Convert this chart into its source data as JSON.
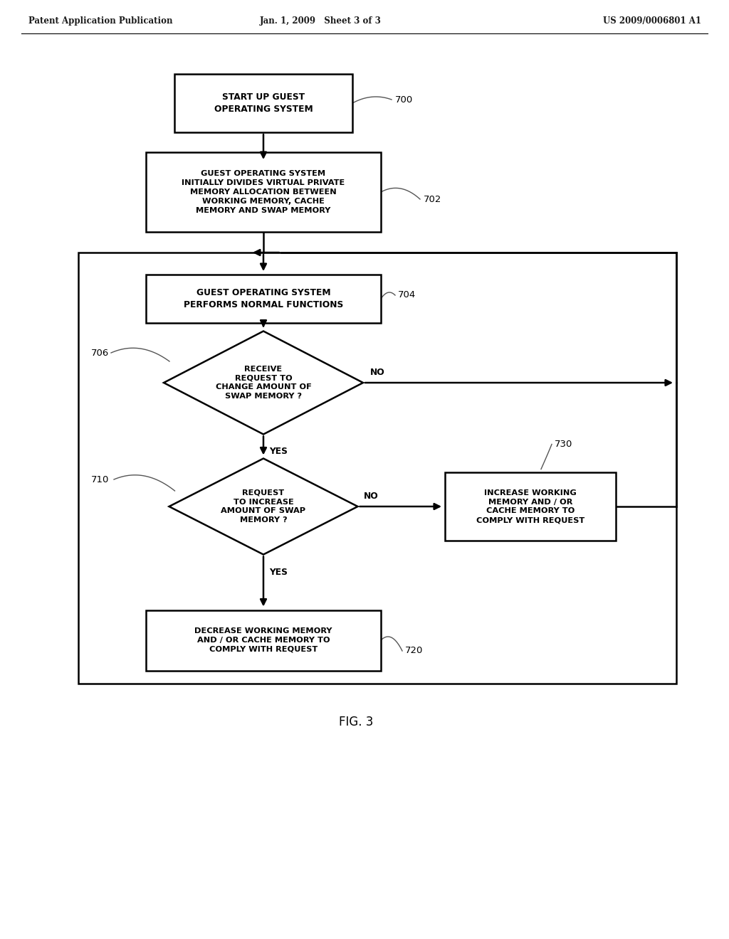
{
  "header_left": "Patent Application Publication",
  "header_mid": "Jan. 1, 2009   Sheet 3 of 3",
  "header_right": "US 2009/0006801 A1",
  "fig_label": "FIG. 3",
  "box700_text": "START UP GUEST\nOPERATING SYSTEM",
  "box700_label": "700",
  "box702_text": "GUEST OPERATING SYSTEM\nINITIALLY DIVIDES VIRTUAL PRIVATE\nMEMORY ALLOCATION BETWEEN\nWORKING MEMORY, CACHE\nMEMORY AND SWAP MEMORY",
  "box702_label": "702",
  "box704_text": "GUEST OPERATING SYSTEM\nPERFORMS NORMAL FUNCTIONS",
  "box704_label": "704",
  "diamond706_text": "RECEIVE\nREQUEST TO\nCHANGE AMOUNT OF\nSWAP MEMORY ?",
  "diamond706_label": "706",
  "diamond710_text": "REQUEST\nTO INCREASE\nAMOUNT OF SWAP\nMEMORY ?",
  "diamond710_label": "710",
  "box720_text": "DECREASE WORKING MEMORY\nAND / OR CACHE MEMORY TO\nCOMPLY WITH REQUEST",
  "box720_label": "720",
  "box730_text": "INCREASE WORKING\nMEMORY AND / OR\nCACHE MEMORY TO\nCOMPLY WITH REQUEST",
  "box730_label": "730",
  "background_color": "#ffffff",
  "box_edge_color": "#000000",
  "text_color": "#000000",
  "arrow_color": "#000000"
}
